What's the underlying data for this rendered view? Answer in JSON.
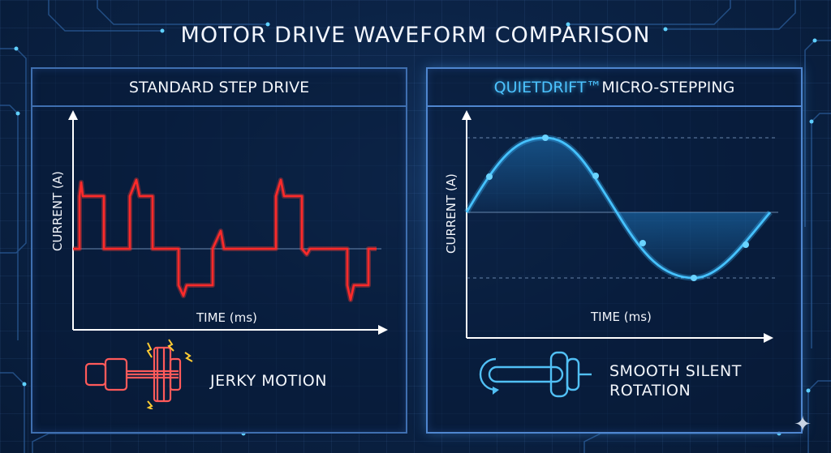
{
  "title": "MOTOR DRIVE WAVEFORM COMPARISON",
  "left_panel": {
    "heading": "STANDARD STEP DRIVE",
    "y_axis_label": "CURRENT (A)",
    "x_axis_label": "TIME (ms)",
    "caption": "JERKY MOTION",
    "icon": "jerky-motor-shaft-icon",
    "color": "#ff2a2a"
  },
  "right_panel": {
    "heading_brand": "QUIETDRIFT™",
    "heading_rest": " MICRO-STEPPING",
    "y_axis_label": "CURRENT (A)",
    "x_axis_label": "TIME (ms)",
    "caption_line1": "SMOOTH SILENT",
    "caption_line2": "ROTATION",
    "icon": "smooth-motor-shaft-icon",
    "color": "#3ab8ff"
  },
  "decor_icon": "sparkle-icon"
}
